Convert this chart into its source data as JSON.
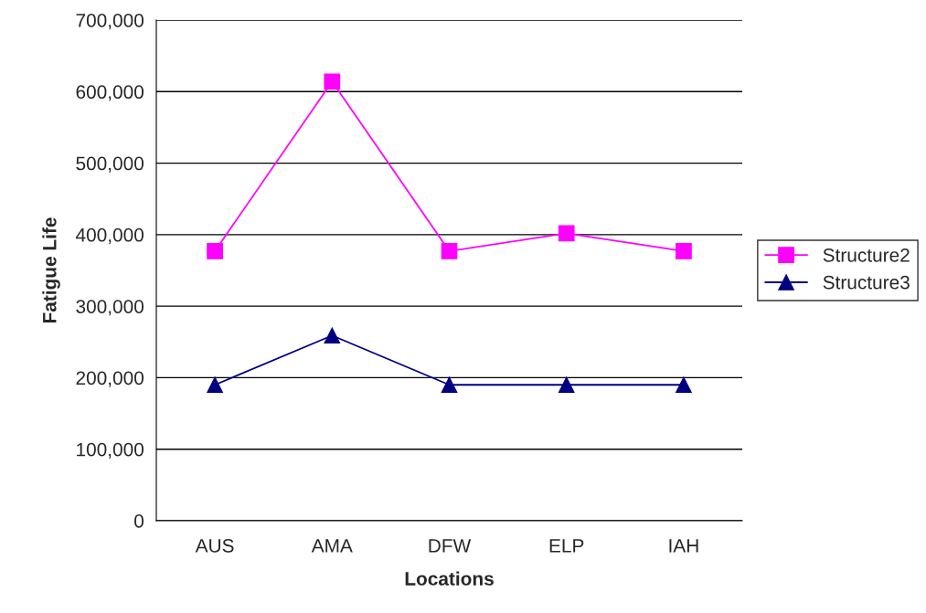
{
  "chart_data": {
    "type": "line",
    "xlabel": "Locations",
    "ylabel": "Fatigue Life",
    "categories": [
      "AUS",
      "AMA",
      "DFW",
      "ELP",
      "IAH"
    ],
    "series": [
      {
        "name": "Structure2",
        "color": "#ff00ff",
        "marker": "square",
        "values": [
          377000,
          614000,
          377000,
          402000,
          377000
        ]
      },
      {
        "name": "Structure3",
        "color": "#000080",
        "marker": "triangle",
        "values": [
          190000,
          259000,
          190000,
          190000,
          190000
        ]
      }
    ],
    "ylim": [
      0,
      700000
    ],
    "yticks": [
      {
        "value": 0,
        "label": "0"
      },
      {
        "value": 100000,
        "label": "100,000"
      },
      {
        "value": 200000,
        "label": "200,000"
      },
      {
        "value": 300000,
        "label": "300,000"
      },
      {
        "value": 400000,
        "label": "400,000"
      },
      {
        "value": 500000,
        "label": "500,000"
      },
      {
        "value": 600000,
        "label": "600,000"
      },
      {
        "value": 700000,
        "label": "700,000"
      }
    ],
    "grid": "y",
    "legend": "right",
    "line_style": "solid"
  }
}
